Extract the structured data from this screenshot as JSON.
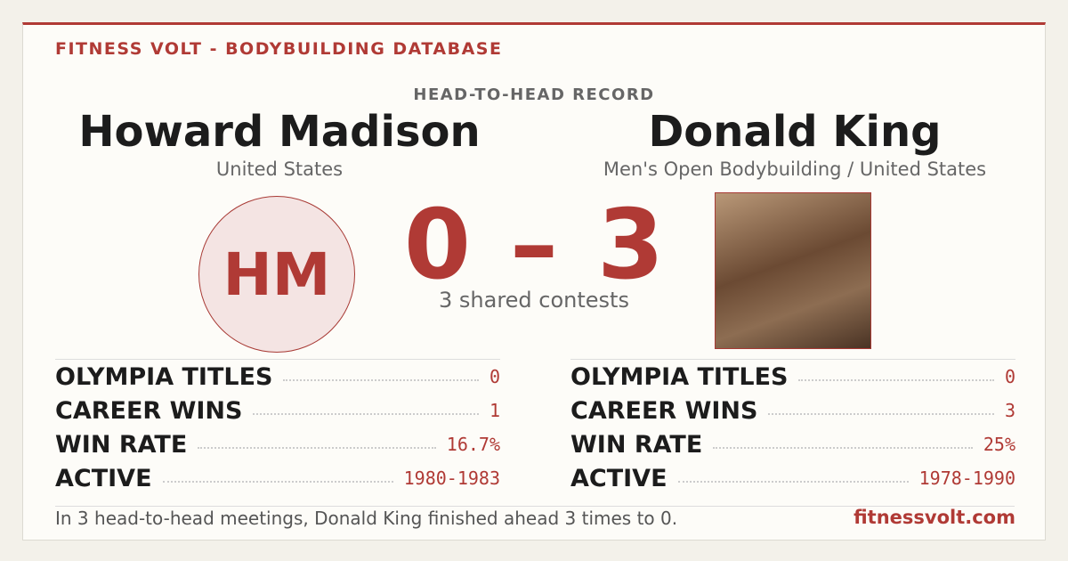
{
  "header": {
    "brand": "FITNESS VOLT - BODYBUILDING DATABASE",
    "section": "HEAD-TO-HEAD RECORD"
  },
  "left": {
    "name": "Howard Madison",
    "subtitle": "United States",
    "initials": "HM",
    "stats": [
      {
        "label": "OLYMPIA TITLES",
        "value": "0"
      },
      {
        "label": "CAREER WINS",
        "value": "1"
      },
      {
        "label": "WIN RATE",
        "value": "16.7%"
      },
      {
        "label": "ACTIVE",
        "value": "1980-1983"
      }
    ]
  },
  "right": {
    "name": "Donald King",
    "subtitle": "Men's Open Bodybuilding / United States",
    "stats": [
      {
        "label": "OLYMPIA TITLES",
        "value": "0"
      },
      {
        "label": "CAREER WINS",
        "value": "3"
      },
      {
        "label": "WIN RATE",
        "value": "25%"
      },
      {
        "label": "ACTIVE",
        "value": "1978-1990"
      }
    ]
  },
  "score": {
    "left": "0",
    "separator": "–",
    "right": "3",
    "caption": "3 shared contests"
  },
  "footer": {
    "summary": "In 3 head-to-head meetings, Donald King finished ahead 3 times to 0.",
    "site": "fitnessvolt.com"
  }
}
